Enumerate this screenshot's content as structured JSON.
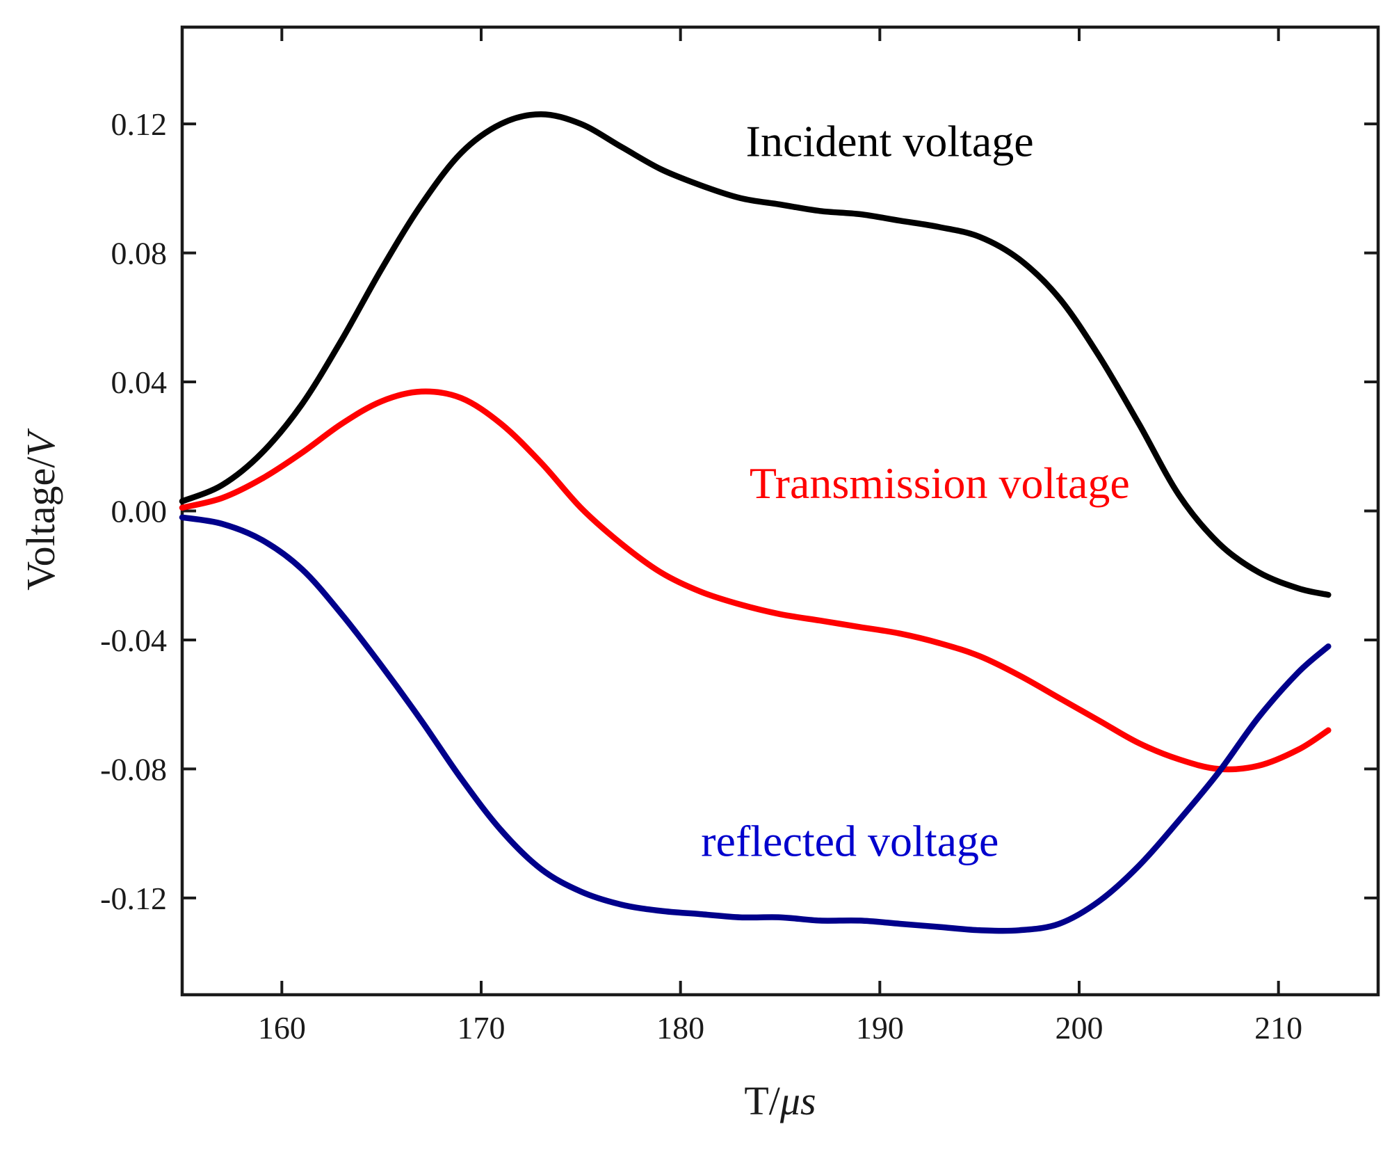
{
  "chart_data": {
    "type": "line",
    "title": "",
    "xlabel": "T/",
    "xlabel_unit": "μs",
    "ylabel": "Voltage/",
    "ylabel_unit": "V",
    "xlim": [
      155,
      215
    ],
    "ylim": [
      -0.15,
      0.15
    ],
    "xticks": [
      160,
      170,
      180,
      190,
      200,
      210
    ],
    "xtick_labels": [
      "160",
      "170",
      "180",
      "190",
      "200",
      "210"
    ],
    "yticks": [
      0.12,
      0.08,
      0.04,
      0.0,
      -0.04,
      -0.08,
      -0.12
    ],
    "ytick_labels": [
      "0.12",
      "0.08",
      "0.04",
      "0.00",
      "-0.04",
      "-0.08",
      "-0.12"
    ],
    "grid": false,
    "legend": "inline labels",
    "series": [
      {
        "name": "Incident voltage",
        "color": "#000000",
        "x": [
          155,
          157,
          159,
          161,
          163,
          165,
          167,
          169,
          171,
          173,
          175,
          177,
          179,
          181,
          183,
          185,
          187,
          189,
          191,
          193,
          195,
          197,
          199,
          201,
          203,
          205,
          207,
          209,
          211,
          212.5
        ],
        "y": [
          0.003,
          0.008,
          0.018,
          0.033,
          0.053,
          0.075,
          0.095,
          0.111,
          0.12,
          0.123,
          0.12,
          0.113,
          0.106,
          0.101,
          0.097,
          0.095,
          0.093,
          0.092,
          0.09,
          0.088,
          0.085,
          0.078,
          0.066,
          0.048,
          0.027,
          0.005,
          -0.01,
          -0.019,
          -0.024,
          -0.026
        ]
      },
      {
        "name": "Transmission voltage",
        "color": "#ff0000",
        "x": [
          155,
          157,
          159,
          161,
          163,
          165,
          167,
          169,
          171,
          173,
          175,
          177,
          179,
          181,
          183,
          185,
          187,
          189,
          191,
          193,
          195,
          197,
          199,
          201,
          203,
          205,
          207,
          209,
          211,
          212.5
        ],
        "y": [
          0.001,
          0.004,
          0.01,
          0.018,
          0.027,
          0.034,
          0.037,
          0.035,
          0.027,
          0.015,
          0.001,
          -0.01,
          -0.019,
          -0.025,
          -0.029,
          -0.032,
          -0.034,
          -0.036,
          -0.038,
          -0.041,
          -0.045,
          -0.051,
          -0.058,
          -0.065,
          -0.072,
          -0.077,
          -0.08,
          -0.079,
          -0.074,
          -0.068
        ]
      },
      {
        "name": "reflected voltage",
        "color": "#00008b",
        "x": [
          155,
          157,
          159,
          161,
          163,
          165,
          167,
          169,
          171,
          173,
          175,
          177,
          179,
          181,
          183,
          185,
          187,
          189,
          191,
          193,
          195,
          197,
          199,
          201,
          203,
          205,
          207,
          209,
          211,
          212.5
        ],
        "y": [
          -0.002,
          -0.004,
          -0.009,
          -0.018,
          -0.032,
          -0.048,
          -0.065,
          -0.083,
          -0.099,
          -0.111,
          -0.118,
          -0.122,
          -0.124,
          -0.125,
          -0.126,
          -0.126,
          -0.127,
          -0.127,
          -0.128,
          -0.129,
          -0.13,
          -0.13,
          -0.128,
          -0.121,
          -0.11,
          -0.096,
          -0.081,
          -0.064,
          -0.05,
          -0.042
        ]
      }
    ],
    "annotations": [
      {
        "text": "Incident voltage",
        "x": 190.5,
        "y": 0.11,
        "color": "#000000"
      },
      {
        "text": "Transmission voltage",
        "x": 193.0,
        "y": 0.004,
        "color": "#ff0000"
      },
      {
        "text": "reflected voltage",
        "x": 188.5,
        "y": -0.107,
        "color": "#0000cd"
      }
    ]
  }
}
